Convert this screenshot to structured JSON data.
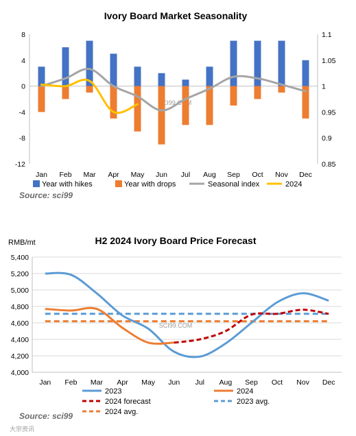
{
  "chart_data": [
    {
      "type": "bar",
      "title": "Ivory Board Market Seasonality",
      "categories": [
        "Jan",
        "Feb",
        "Mar",
        "Apr",
        "May",
        "Jun",
        "Jul",
        "Aug",
        "Sep",
        "Oct",
        "Nov",
        "Dec"
      ],
      "ylim": [
        -12,
        8
      ],
      "yticks": [
        -12,
        -8,
        -4,
        0,
        4,
        8
      ],
      "y2lim": [
        0.85,
        1.1
      ],
      "y2ticks": [
        "0.85",
        "0.9",
        "0.95",
        "1",
        "1.05",
        "1.1"
      ],
      "series": [
        {
          "name": "Year with hikes",
          "kind": "bar",
          "axis": "left",
          "color": "#4472c4",
          "values": [
            3,
            6,
            7,
            5,
            3,
            2,
            1,
            3,
            7,
            7,
            7,
            4
          ]
        },
        {
          "name": "Year with drops",
          "kind": "bar",
          "axis": "left",
          "color": "#ed7d31",
          "values": [
            -4,
            -2,
            -1,
            -5,
            -7,
            -9,
            -6,
            -6,
            -3,
            -2,
            -1,
            -5
          ]
        },
        {
          "name": "Seasonal index",
          "kind": "line",
          "axis": "right",
          "color": "#a5a5a5",
          "values": [
            1.0,
            1.015,
            1.033,
            1.0,
            0.98,
            0.953,
            0.975,
            0.995,
            1.018,
            1.015,
            1.003,
            0.99
          ]
        },
        {
          "name": "2024",
          "kind": "line",
          "axis": "right",
          "color": "#ffc000",
          "values": [
            1.003,
            1.0,
            1.01,
            0.95,
            0.965,
            null,
            null,
            null,
            null,
            null,
            null,
            null
          ]
        }
      ],
      "source": "Source: sci99",
      "watermark": "SCI99.COM"
    },
    {
      "type": "line",
      "title": "H2 2024 Ivory  Board Price Forecast",
      "ylabel": "RMB/mt",
      "categories": [
        "Jan",
        "Feb",
        "Mar",
        "Apr",
        "May",
        "Jun",
        "Jul",
        "Aug",
        "Sep",
        "Oct",
        "Nov",
        "Dec"
      ],
      "ylim": [
        4000,
        5400
      ],
      "yticks": [
        "4,000",
        "4,200",
        "4,400",
        "4,600",
        "4,800",
        "5,000",
        "5,200",
        "5,400"
      ],
      "series": [
        {
          "name": "2023",
          "color": "#5b9bd5",
          "dash": false,
          "values": [
            5200,
            5185,
            4960,
            4690,
            4530,
            4250,
            4190,
            4350,
            4600,
            4850,
            4960,
            4870
          ]
        },
        {
          "name": "2024",
          "color": "#ed7d31",
          "dash": false,
          "values": [
            4770,
            4750,
            4770,
            4540,
            4360,
            4360,
            null,
            null,
            null,
            null,
            null,
            null
          ]
        },
        {
          "name": "2024 forecast",
          "color": "#c00000",
          "dash": true,
          "values": [
            null,
            null,
            null,
            null,
            null,
            4360,
            4400,
            4500,
            4700,
            4710,
            4760,
            4710
          ]
        },
        {
          "name": "2023 avg.",
          "color": "#5b9bd5",
          "dash": true,
          "values": [
            4710,
            4710,
            4710,
            4710,
            4710,
            4710,
            4710,
            4710,
            4710,
            4710,
            4710,
            4710
          ]
        },
        {
          "name": "2024 avg.",
          "color": "#ed7d31",
          "dash": true,
          "values": [
            4620,
            4620,
            4620,
            4620,
            4620,
            4620,
            4620,
            4620,
            4620,
            4620,
            4620,
            4620
          ]
        }
      ],
      "source": "Source: sci99",
      "watermark": "SCI99.COM",
      "footer_logo": "大宗资讯"
    }
  ]
}
